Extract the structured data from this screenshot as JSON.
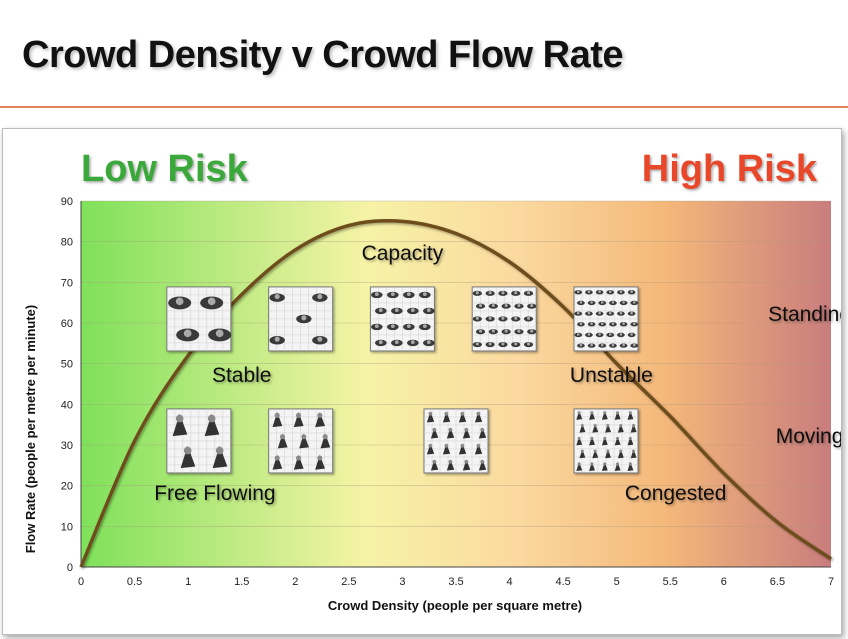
{
  "slide": {
    "title": "Crowd Density v Crowd Flow Rate"
  },
  "colors": {
    "low_risk": "#3aa83a",
    "high_risk": "#e8472a",
    "curve": "#6e4e1f",
    "title_rule": "#e2805a",
    "gradient": [
      "#7fe15a",
      "#f6f3a6",
      "#fbd9a0",
      "#f4b87a",
      "#c97d7d"
    ]
  },
  "chart_data": {
    "type": "line",
    "title": "",
    "xlabel": "Crowd Density (people per square metre)",
    "ylabel": "Flow Rate (people per metre per minute)",
    "xlim": [
      0,
      7
    ],
    "ylim": [
      0,
      90
    ],
    "x_ticks": [
      "0",
      "0.5",
      "1",
      "1.5",
      "2",
      "2.5",
      "3",
      "3.5",
      "4",
      "4.5",
      "5",
      "5.5",
      "6",
      "6.5",
      "7"
    ],
    "y_ticks": [
      "0",
      "10",
      "20",
      "30",
      "40",
      "50",
      "60",
      "70",
      "80",
      "90"
    ],
    "grid": true,
    "series": [
      {
        "name": "",
        "x": [
          0,
          0.5,
          1,
          1.5,
          2,
          2.5,
          3,
          3.5,
          4,
          4.5,
          5,
          5.5,
          6,
          6.5,
          7
        ],
        "y": [
          0,
          31,
          52,
          67,
          78,
          84,
          85,
          82,
          75,
          64,
          50,
          37,
          23,
          11,
          2
        ]
      }
    ],
    "risk_labels": {
      "left": "Low Risk",
      "right": "High Risk"
    },
    "annotations": [
      {
        "text": "Capacity",
        "x": 3.0,
        "y": 75.5
      },
      {
        "text": "Stable",
        "x": 1.5,
        "y": 45.5
      },
      {
        "text": "Unstable",
        "x": 4.95,
        "y": 45.5
      },
      {
        "text": "Free Flowing",
        "x": 1.25,
        "y": 16.5
      },
      {
        "text": "Congested",
        "x": 5.55,
        "y": 16.5
      },
      {
        "text": "Standing",
        "x": 6.8,
        "y": 60.5
      },
      {
        "text": "Moving",
        "x": 6.8,
        "y": 30.5
      }
    ],
    "crowd_icons": [
      {
        "x": 1.1,
        "y": 61,
        "kind": "standing",
        "level": 1
      },
      {
        "x": 2.05,
        "y": 61,
        "kind": "standing",
        "level": 2
      },
      {
        "x": 3.0,
        "y": 61,
        "kind": "standing",
        "level": 3
      },
      {
        "x": 3.95,
        "y": 61,
        "kind": "standing",
        "level": 4
      },
      {
        "x": 4.9,
        "y": 61,
        "kind": "standing",
        "level": 5
      },
      {
        "x": 1.1,
        "y": 31,
        "kind": "moving",
        "level": 1
      },
      {
        "x": 2.05,
        "y": 31,
        "kind": "moving",
        "level": 2
      },
      {
        "x": 3.5,
        "y": 31,
        "kind": "moving",
        "level": 3
      },
      {
        "x": 4.9,
        "y": 31,
        "kind": "moving",
        "level": 4
      }
    ]
  }
}
